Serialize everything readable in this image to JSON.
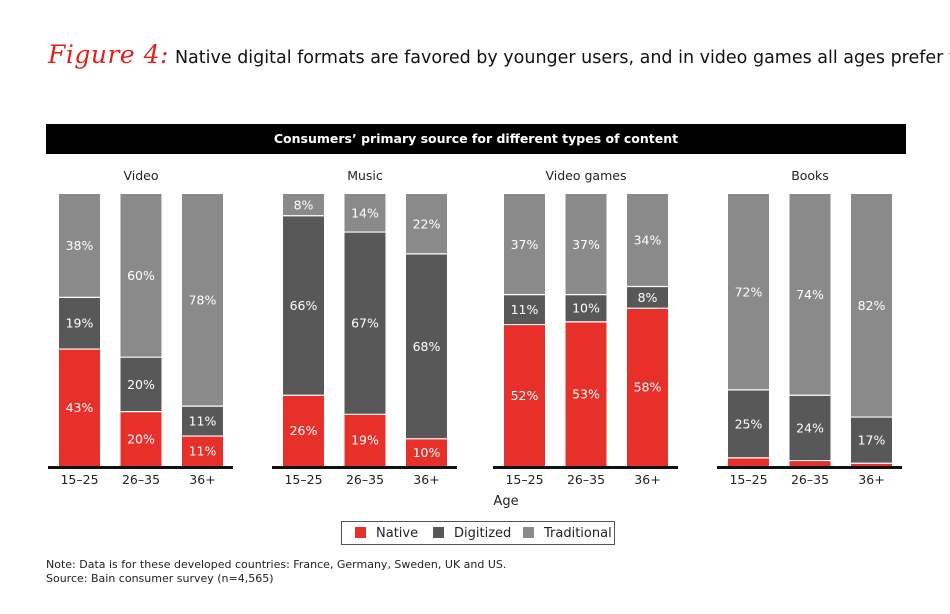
{
  "title": {
    "figure_label": "Figure 4:",
    "text": "Native digital formats are favored by younger users, and in video games all ages prefer them"
  },
  "banner": "Consumers’ primary source for different types of content",
  "colors": {
    "Native": "#e8302a",
    "Digitized": "#585858",
    "Traditional": "#8a8a8b",
    "title_accent": "#e0201b"
  },
  "chart_data": {
    "type": "bar",
    "stacked": true,
    "xlabel": "Age",
    "categories": [
      "15–25",
      "26–35",
      "36+"
    ],
    "legend": [
      "Native",
      "Digitized",
      "Traditional"
    ],
    "legend_position": "bottom-center",
    "panels": [
      {
        "title": "Video",
        "series": [
          {
            "name": "Native",
            "values": [
              43,
              20,
              11
            ],
            "labels": [
              "43%",
              "20%",
              "11%"
            ]
          },
          {
            "name": "Digitized",
            "values": [
              19,
              20,
              11
            ],
            "labels": [
              "19%",
              "20%",
              "11%"
            ]
          },
          {
            "name": "Traditional",
            "values": [
              38,
              60,
              78
            ],
            "labels": [
              "38%",
              "60%",
              "78%"
            ]
          }
        ]
      },
      {
        "title": "Music",
        "series": [
          {
            "name": "Native",
            "values": [
              26,
              19,
              10
            ],
            "labels": [
              "26%",
              "19%",
              "10%"
            ]
          },
          {
            "name": "Digitized",
            "values": [
              66,
              67,
              68
            ],
            "labels": [
              "66%",
              "67%",
              "68%"
            ]
          },
          {
            "name": "Traditional",
            "values": [
              8,
              14,
              22
            ],
            "labels": [
              "8%",
              "14%",
              "22%"
            ]
          }
        ]
      },
      {
        "title": "Video games",
        "series": [
          {
            "name": "Native",
            "values": [
              52,
              53,
              58
            ],
            "labels": [
              "52%",
              "53%",
              "58%"
            ]
          },
          {
            "name": "Digitized",
            "values": [
              11,
              10,
              8
            ],
            "labels": [
              "11%",
              "10%",
              "8%"
            ]
          },
          {
            "name": "Traditional",
            "values": [
              37,
              37,
              34
            ],
            "labels": [
              "37%",
              "37%",
              "34%"
            ]
          }
        ]
      },
      {
        "title": "Books",
        "series": [
          {
            "name": "Native",
            "values": [
              3,
              2,
              1
            ],
            "labels": [
              "",
              "",
              ""
            ]
          },
          {
            "name": "Digitized",
            "values": [
              25,
              24,
              17
            ],
            "labels": [
              "25%",
              "24%",
              "17%"
            ]
          },
          {
            "name": "Traditional",
            "values": [
              72,
              74,
              82
            ],
            "labels": [
              "72%",
              "74%",
              "82%"
            ]
          }
        ]
      }
    ]
  },
  "notes": {
    "note": "Note: Data is for these developed countries: France, Germany, Sweden, UK and US.",
    "source": "Source: Bain consumer survey (n=4,565)"
  }
}
